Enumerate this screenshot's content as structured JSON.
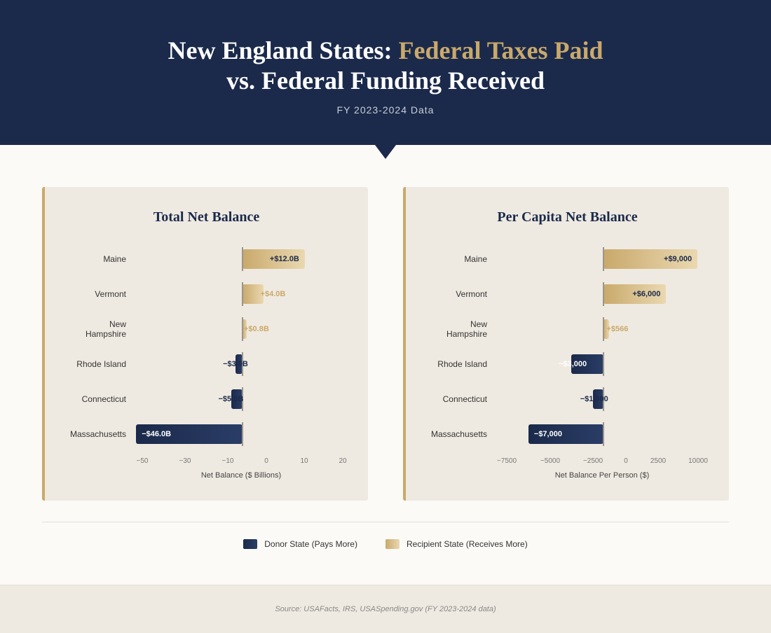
{
  "header": {
    "title_a": "New England States: ",
    "title_gold": "Federal Taxes Paid",
    "title_b": "vs. Federal Funding Received",
    "subtitle": "FY 2023-2024 Data"
  },
  "colors": {
    "donor": "#1b2a4b",
    "recipient": "#c9a96b"
  },
  "chart_data": [
    {
      "type": "bar",
      "orientation": "horizontal",
      "title": "Total Net Balance",
      "xlabel": "Net Balance ($ Billions)",
      "categories": [
        "Maine",
        "Vermont",
        "New Hampshire",
        "Rhode Island",
        "Connecticut",
        "Massachusetts"
      ],
      "values": [
        12.0,
        4.0,
        0.8,
        -3.0,
        -5.0,
        -46.0
      ],
      "labels": [
        "+$12.0B",
        "+$4.0B",
        "+$0.8B",
        "−$3.0B",
        "−$5.0B",
        "−$46.0B"
      ],
      "xticks": [
        "−50",
        "−30",
        "−10",
        "0",
        "10",
        "20"
      ]
    },
    {
      "type": "bar",
      "orientation": "horizontal",
      "title": "Per Capita Net Balance",
      "xlabel": "Net Balance Per Person ($)",
      "categories": [
        "Maine",
        "Vermont",
        "New Hampshire",
        "Rhode Island",
        "Connecticut",
        "Massachusetts"
      ],
      "values": [
        9000,
        6000,
        566,
        -3000,
        -1000,
        -7000
      ],
      "labels": [
        "+$9,000",
        "+$6,000",
        "+$566",
        "−$3,000",
        "−$1,000",
        "−$7,000"
      ],
      "xticks": [
        "−7500",
        "−5000",
        "−2500",
        "0",
        "2500",
        "10000"
      ]
    }
  ],
  "legend": {
    "donor": "Donor State (Pays More)",
    "recipient": "Recipient State (Receives More)"
  },
  "footer": {
    "source": "Source: USAFacts, IRS, USASpending.gov (FY 2023-2024 data)"
  }
}
